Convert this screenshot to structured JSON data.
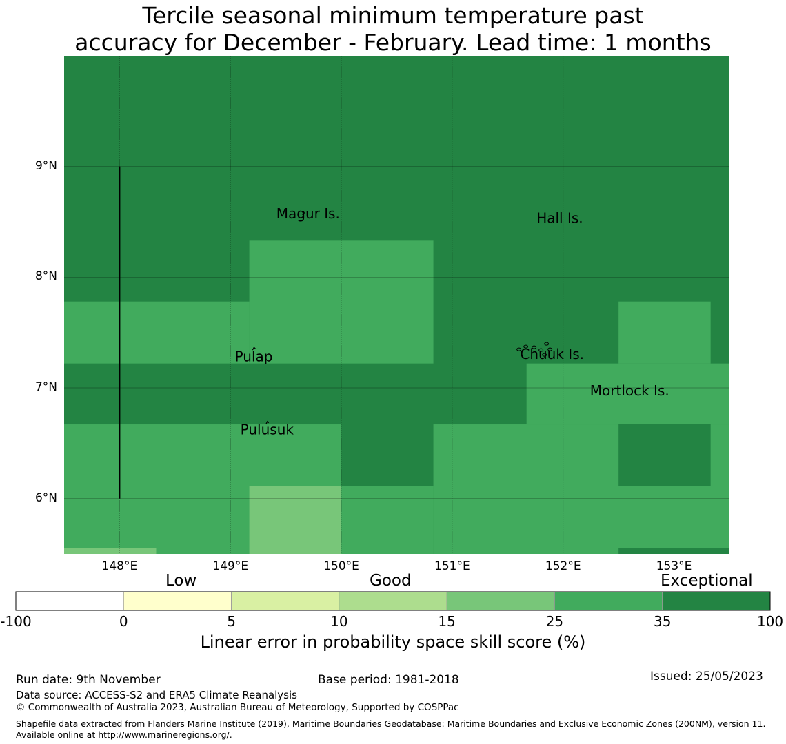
{
  "title": {
    "line1": "Tercile seasonal minimum temperature past",
    "line2": "accuracy for December - February. Lead time: 1 months"
  },
  "map": {
    "lon_range": [
      147.5,
      153.5
    ],
    "lat_range": [
      5.5,
      10.0
    ],
    "lat_ticks": [
      {
        "value": 9,
        "label": "9°N"
      },
      {
        "value": 8,
        "label": "8°N"
      },
      {
        "value": 7,
        "label": "7°N"
      },
      {
        "value": 6,
        "label": "6°N"
      }
    ],
    "lon_ticks": [
      {
        "value": 148,
        "label": "148°E"
      },
      {
        "value": 149,
        "label": "149°E"
      },
      {
        "value": 150,
        "label": "150°E"
      },
      {
        "value": 151,
        "label": "151°E"
      },
      {
        "value": 152,
        "label": "152°E"
      },
      {
        "value": 153,
        "label": "153°E"
      }
    ],
    "places": [
      {
        "name": "Magur Is.",
        "lon": 149.7,
        "lat": 8.53
      },
      {
        "name": "Hall Is.",
        "lon": 151.97,
        "lat": 8.49
      },
      {
        "name": "Pulap",
        "lon": 149.21,
        "lat": 7.24
      },
      {
        "name": "Chuuk Is.",
        "lon": 151.9,
        "lat": 7.26
      },
      {
        "name": "Mortlock Is.",
        "lon": 152.6,
        "lat": 6.93
      },
      {
        "name": "Pulusuk",
        "lon": 149.33,
        "lat": 6.58
      }
    ],
    "skill_cells_note": "Cells are categorized by colorbar class",
    "cells": [
      {
        "lon0": 147.5,
        "lon1": 153.5,
        "lat0": 5.5,
        "lat1": 10.0,
        "class": "exceptional"
      },
      {
        "lon0": 149.17,
        "lon1": 150.83,
        "lat0": 7.22,
        "lat1": 8.33,
        "class": "25-35"
      },
      {
        "lon0": 147.5,
        "lon1": 149.17,
        "lat0": 7.22,
        "lat1": 7.78,
        "class": "25-35"
      },
      {
        "lon0": 152.5,
        "lon1": 153.33,
        "lat0": 7.22,
        "lat1": 7.78,
        "class": "25-35"
      },
      {
        "lon0": 151.67,
        "lon1": 153.5,
        "lat0": 6.67,
        "lat1": 7.22,
        "class": "25-35"
      },
      {
        "lon0": 147.5,
        "lon1": 150.0,
        "lat0": 5.5,
        "lat1": 6.67,
        "class": "25-35"
      },
      {
        "lon0": 150.83,
        "lon1": 153.5,
        "lat0": 5.5,
        "lat1": 6.67,
        "class": "25-35"
      },
      {
        "lon0": 150.0,
        "lon1": 150.83,
        "lat0": 5.5,
        "lat1": 6.11,
        "class": "25-35"
      },
      {
        "lon0": 152.5,
        "lon1": 153.33,
        "lat0": 6.11,
        "lat1": 6.67,
        "class": "exceptional"
      },
      {
        "lon0": 152.5,
        "lon1": 153.5,
        "lat0": 5.5,
        "lat1": 5.55,
        "class": "exceptional"
      },
      {
        "lon0": 149.17,
        "lon1": 150.0,
        "lat0": 5.5,
        "lat1": 6.11,
        "class": "15-25"
      },
      {
        "lon0": 147.5,
        "lon1": 148.33,
        "lat0": 5.5,
        "lat1": 5.55,
        "class": "15-25"
      }
    ],
    "boundary_line": {
      "lon": 148.0,
      "lat0": 6.0,
      "lat1": 9.0
    }
  },
  "legend": {
    "categories": [
      {
        "label": "Low",
        "key": "low"
      },
      {
        "label": "Good",
        "key": "good"
      },
      {
        "label": "Exceptional",
        "key": "exceptional"
      }
    ],
    "ticks": [
      "-100",
      "0",
      "5",
      "10",
      "15",
      "25",
      "35",
      "100"
    ],
    "colors": [
      "#ffffff",
      "#ffffcc",
      "#d9f0a3",
      "#addd8e",
      "#78c679",
      "#41ab5d",
      "#238443"
    ],
    "class_colors": {
      "15-25": "#78c679",
      "25-35": "#41ab5d",
      "exceptional": "#238443"
    },
    "title": "Linear error in probability space skill score (%)"
  },
  "footer": {
    "run_date": "Run date: 9th November",
    "base_period": "Base period: 1981-2018",
    "issued": "Issued: 25/05/2023",
    "data_source": "Data source: ACCESS-S2 and ERA5 Climate Reanalysis",
    "copyright": "© Commonwealth of Australia 2023, Australian Bureau of Meteorology, Supported by COSPPac",
    "shapefile": "Shapefile data extracted from Flanders Marine Institute (2019), Maritime Boundaries Geodatabase: Maritime Boundaries and Exclusive Economic Zones (200NM), version 11. Available online at http://www.marineregions.org/."
  }
}
